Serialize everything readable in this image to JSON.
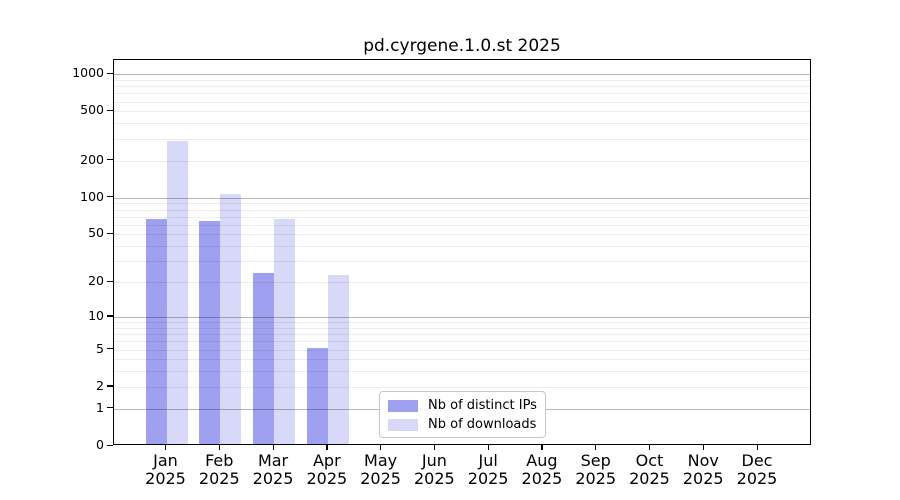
{
  "chart_data": {
    "type": "bar",
    "title": "pd.cyrgene.1.0.st 2025",
    "year": "2025",
    "months": [
      "Jan",
      "Feb",
      "Mar",
      "Apr",
      "May",
      "Jun",
      "Jul",
      "Aug",
      "Sep",
      "Oct",
      "Nov",
      "Dec"
    ],
    "series": [
      {
        "name": "Nb of distinct IPs",
        "color": "#a0a0f0",
        "values": [
          64,
          62,
          23,
          5,
          0,
          0,
          0,
          0,
          0,
          0,
          0,
          0
        ]
      },
      {
        "name": "Nb of downloads",
        "color": "#d8d8f8",
        "values": [
          280,
          103,
          65,
          22,
          0,
          0,
          0,
          0,
          0,
          0,
          0,
          0
        ]
      }
    ],
    "y_ticks": [
      0,
      1,
      2,
      5,
      10,
      20,
      50,
      100,
      200,
      500,
      1000
    ],
    "y_scale": "log10(1+x)",
    "ylim": [
      0,
      1300
    ],
    "grid": "horizontal-log-minor-and-major",
    "legend_position": "bottom-center-inside",
    "axis_color": "#000000",
    "gridline_major_color": "#b8b8b8",
    "gridline_minor_color": "#ececec"
  }
}
